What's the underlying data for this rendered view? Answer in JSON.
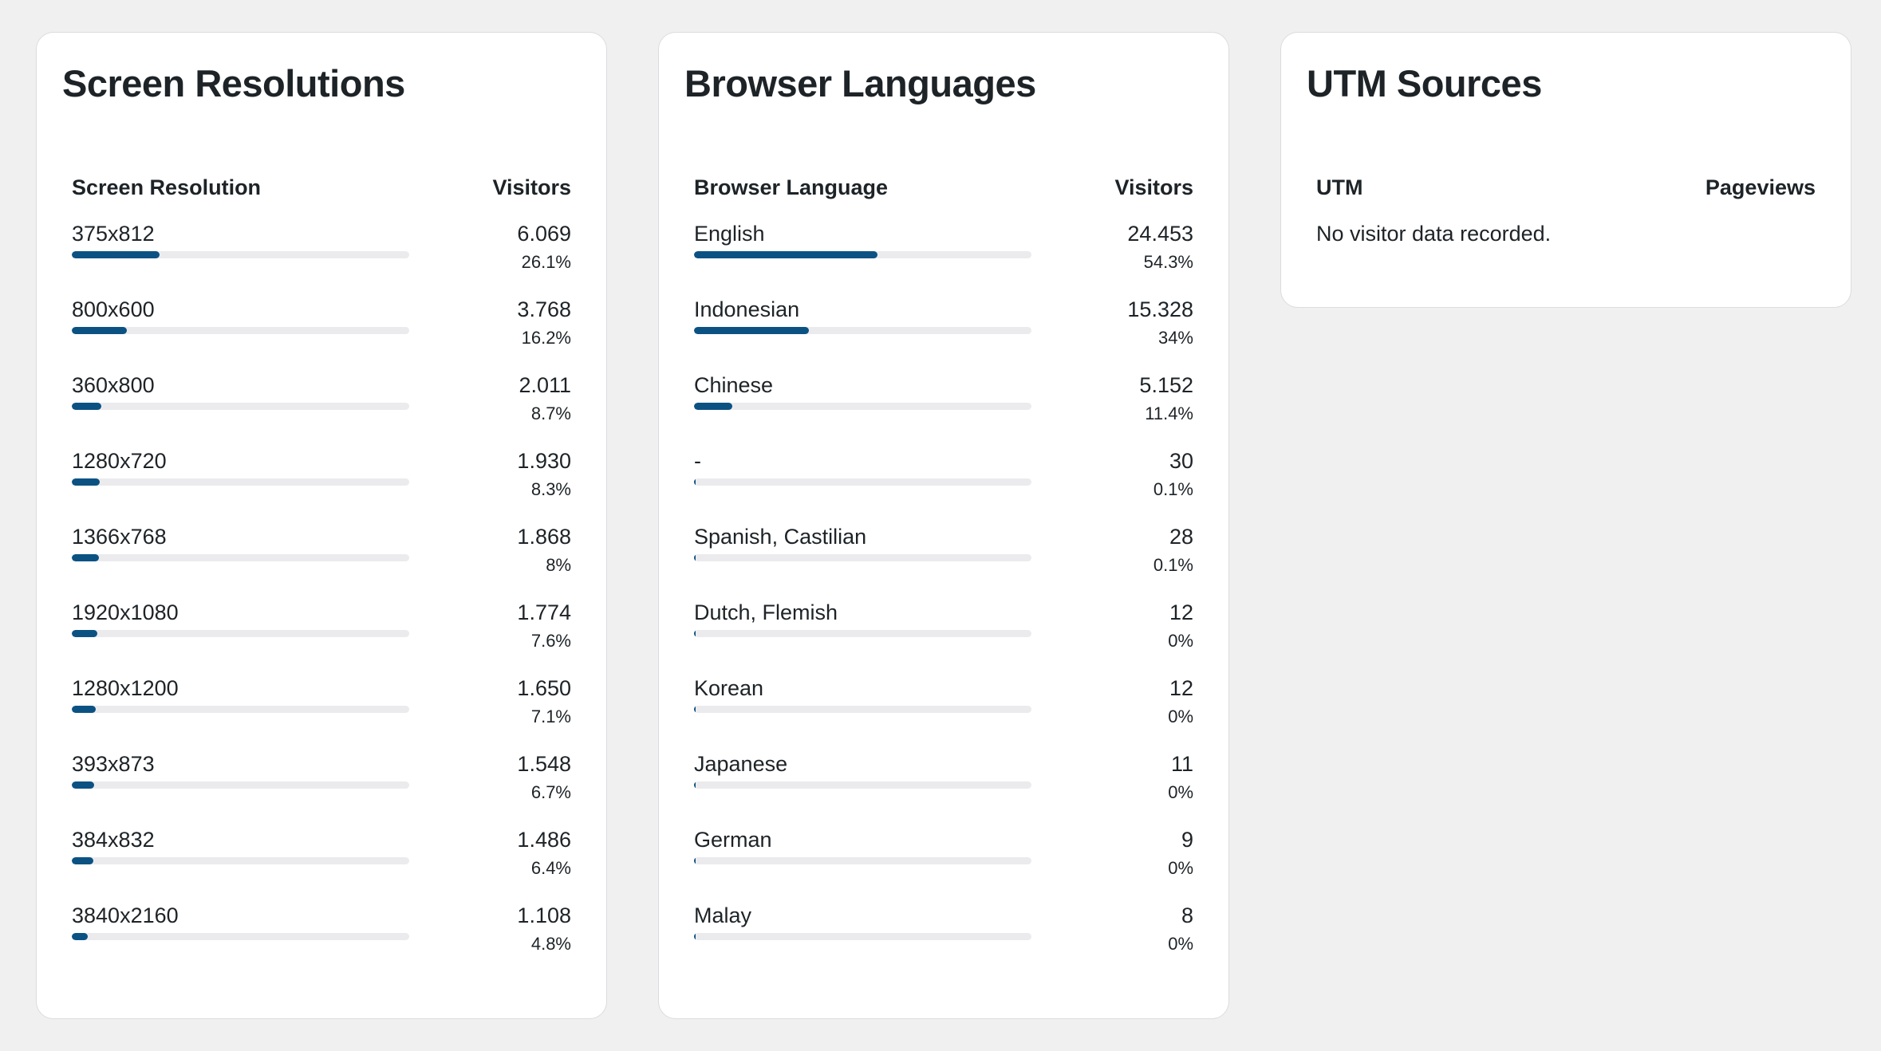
{
  "screen_resolutions": {
    "title": "Screen Resolutions",
    "col_label": "Screen Resolution",
    "col_value": "Visitors",
    "bar_color": "#0b5283",
    "rows": [
      {
        "label": "375x812",
        "value": "6.069",
        "pct": "26.1%",
        "fraction": 0.261
      },
      {
        "label": "800x600",
        "value": "3.768",
        "pct": "16.2%",
        "fraction": 0.162
      },
      {
        "label": "360x800",
        "value": "2.011",
        "pct": "8.7%",
        "fraction": 0.087
      },
      {
        "label": "1280x720",
        "value": "1.930",
        "pct": "8.3%",
        "fraction": 0.083
      },
      {
        "label": "1366x768",
        "value": "1.868",
        "pct": "8%",
        "fraction": 0.08
      },
      {
        "label": "1920x1080",
        "value": "1.774",
        "pct": "7.6%",
        "fraction": 0.076
      },
      {
        "label": "1280x1200",
        "value": "1.650",
        "pct": "7.1%",
        "fraction": 0.071
      },
      {
        "label": "393x873",
        "value": "1.548",
        "pct": "6.7%",
        "fraction": 0.067
      },
      {
        "label": "384x832",
        "value": "1.486",
        "pct": "6.4%",
        "fraction": 0.064
      },
      {
        "label": "3840x2160",
        "value": "1.108",
        "pct": "4.8%",
        "fraction": 0.048
      }
    ]
  },
  "browser_languages": {
    "title": "Browser Languages",
    "col_label": "Browser Language",
    "col_value": "Visitors",
    "bar_color": "#0b5283",
    "rows": [
      {
        "label": "English",
        "value": "24.453",
        "pct": "54.3%",
        "fraction": 0.543
      },
      {
        "label": "Indonesian",
        "value": "15.328",
        "pct": "34%",
        "fraction": 0.34
      },
      {
        "label": "Chinese",
        "value": "5.152",
        "pct": "11.4%",
        "fraction": 0.114
      },
      {
        "label": "-",
        "value": "30",
        "pct": "0.1%",
        "fraction": 0.001
      },
      {
        "label": "Spanish, Castilian",
        "value": "28",
        "pct": "0.1%",
        "fraction": 0.001
      },
      {
        "label": "Dutch, Flemish",
        "value": "12",
        "pct": "0%",
        "fraction": 0
      },
      {
        "label": "Korean",
        "value": "12",
        "pct": "0%",
        "fraction": 0
      },
      {
        "label": "Japanese",
        "value": "11",
        "pct": "0%",
        "fraction": 0
      },
      {
        "label": "German",
        "value": "9",
        "pct": "0%",
        "fraction": 0
      },
      {
        "label": "Malay",
        "value": "8",
        "pct": "0%",
        "fraction": 0
      }
    ]
  },
  "utm_sources": {
    "title": "UTM Sources",
    "col_label": "UTM",
    "col_value": "Pageviews",
    "empty_message": "No visitor data recorded."
  }
}
